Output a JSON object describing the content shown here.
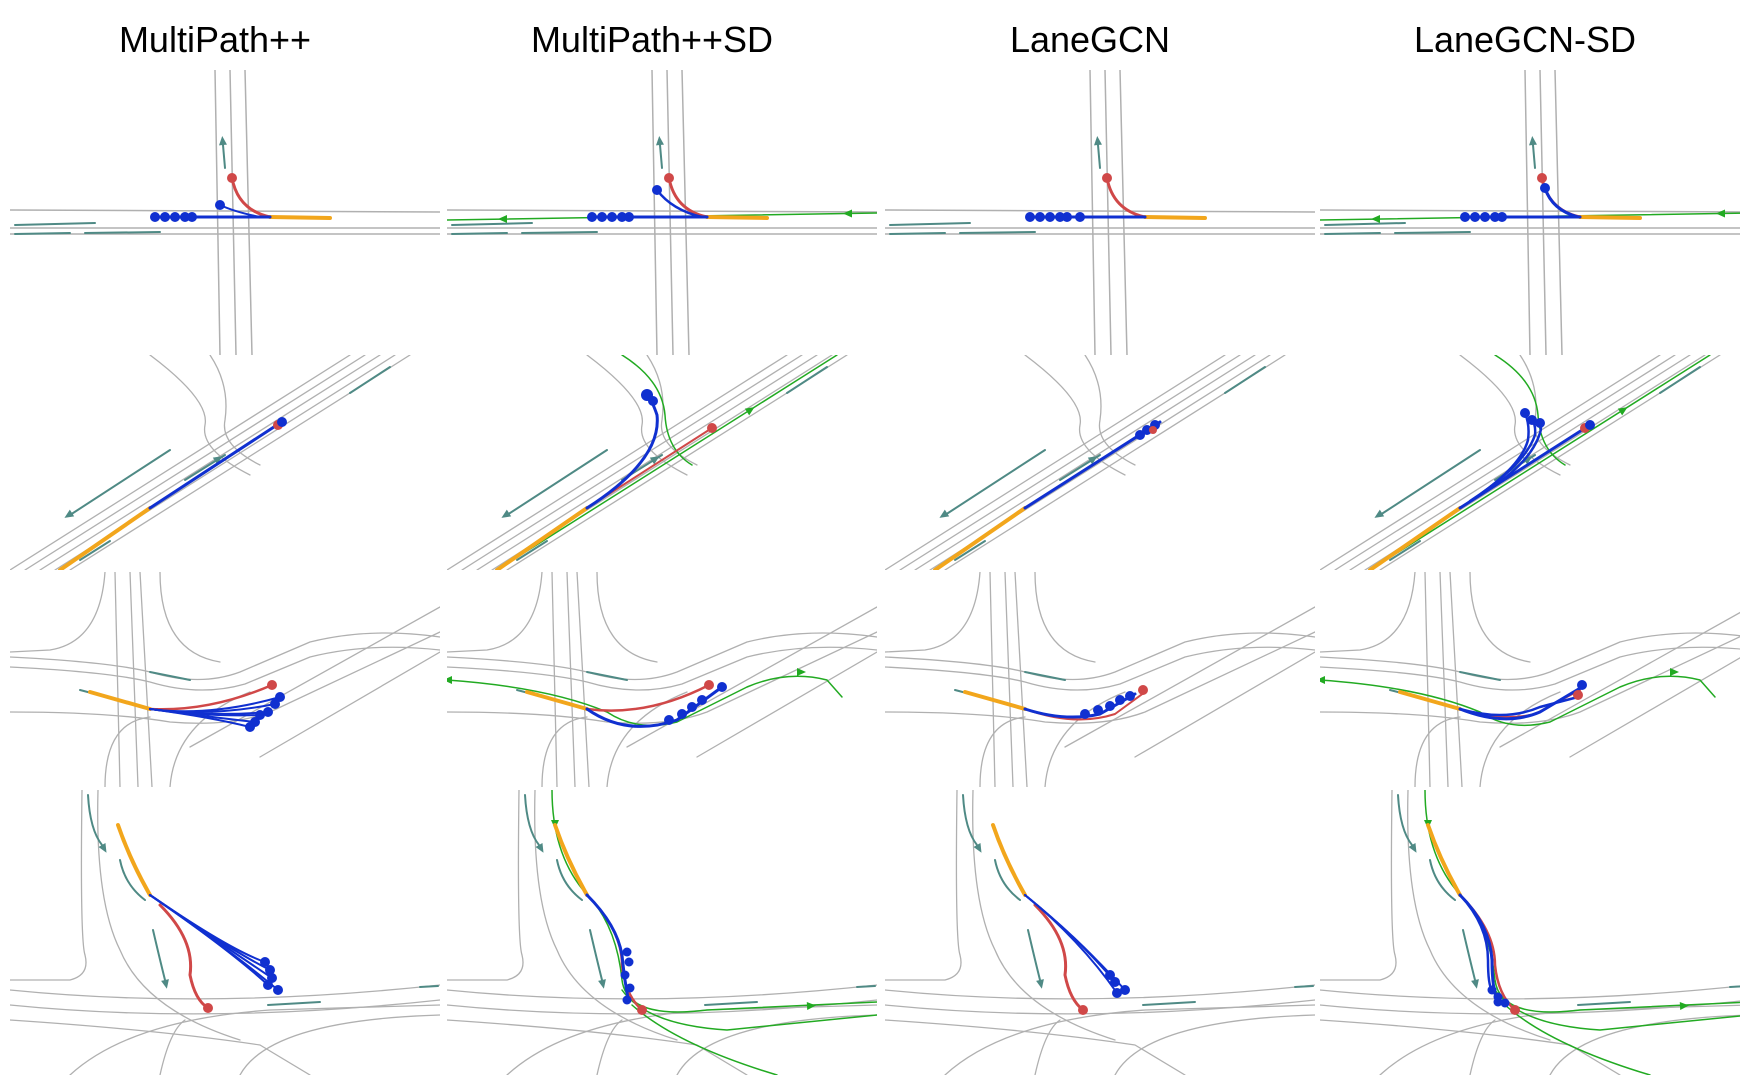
{
  "columns": [
    {
      "title": "MultiPath++",
      "sd": false,
      "model": "multipath"
    },
    {
      "title": "MultiPath++SD",
      "sd": true,
      "model": "multipath"
    },
    {
      "title": "LaneGCN",
      "sd": false,
      "model": "lanegcn"
    },
    {
      "title": "LaneGCN-SD",
      "sd": true,
      "model": "lanegcn"
    }
  ],
  "rows": [
    "intersection",
    "diagonal",
    "curve",
    "merge"
  ],
  "colors": {
    "lane": "#b0b0b0",
    "lane_arrow": "#4f8a85",
    "sd_route": "#22aa22",
    "history": "#f2a61c",
    "ground_truth": "#d04848",
    "prediction": "#1030d0"
  }
}
